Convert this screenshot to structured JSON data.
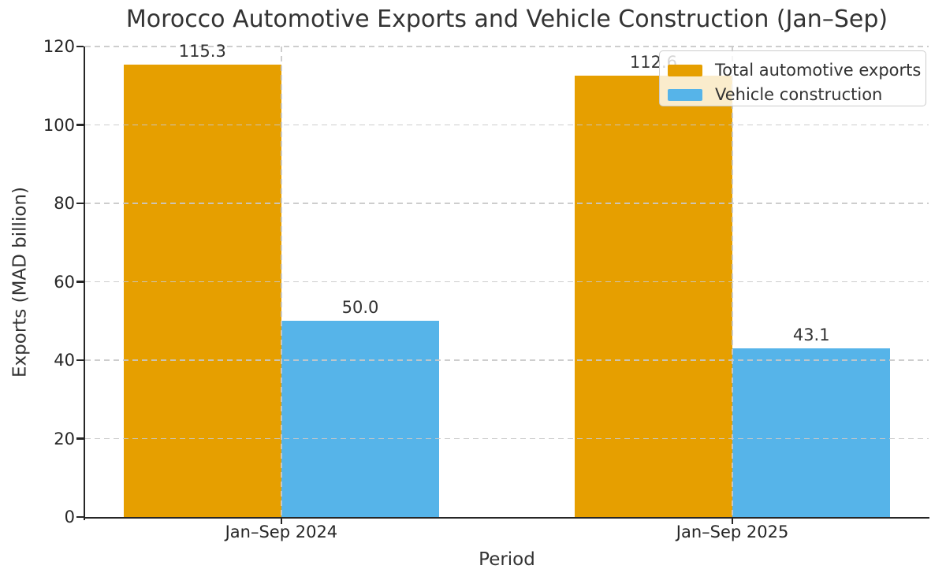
{
  "chart_data": {
    "type": "bar",
    "title": "Morocco Automotive Exports and Vehicle Construction (Jan–Sep)",
    "xlabel": "Period",
    "ylabel": "Exports (MAD billion)",
    "categories": [
      "Jan–Sep 2024",
      "Jan–Sep 2025"
    ],
    "series": [
      {
        "name": "Total automotive exports",
        "color": "#E69F00",
        "values": [
          115.3,
          112.6
        ]
      },
      {
        "name": "Vehicle construction",
        "color": "#56B4E9",
        "values": [
          50.0,
          43.1
        ]
      }
    ],
    "value_labels": [
      [
        "115.3",
        "112.6"
      ],
      [
        "50.0",
        "43.1"
      ]
    ],
    "ylim": [
      0,
      120
    ],
    "yticks": [
      0,
      20,
      40,
      60,
      80,
      100,
      120
    ],
    "grid": {
      "enabled": true,
      "style": "dashed",
      "axes": "both",
      "above_bars": true
    },
    "legend_position": "upper right"
  },
  "colors": {
    "bar_orange": "#E69F00",
    "bar_blue": "#56B4E9",
    "grid": "#c8c8c8",
    "spine": "#262626",
    "text": "#333333",
    "legend_border": "#cccccc",
    "legend_background": "rgba(255,255,255,0.8)"
  }
}
